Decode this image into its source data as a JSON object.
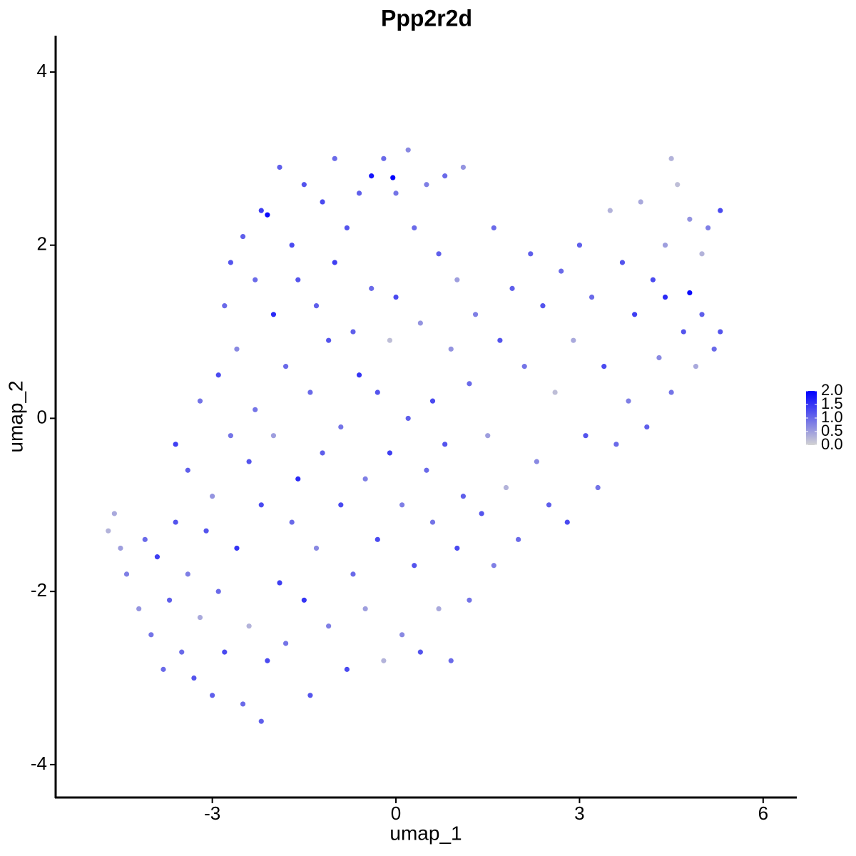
{
  "chart_data": {
    "type": "scatter",
    "title": "Ppp2r2d",
    "x_label": "umap_1",
    "y_label": "umap_2",
    "x": [
      -4.7,
      -4.6,
      -4.5,
      -4.4,
      -4.2,
      -4.1,
      -4.0,
      -3.9,
      -3.8,
      -3.7,
      -3.6,
      -3.6,
      -3.5,
      -3.4,
      -3.4,
      -3.3,
      -3.2,
      -3.2,
      -3.1,
      -3.0,
      -3.0,
      -2.9,
      -2.9,
      -2.8,
      -2.8,
      -2.7,
      -2.7,
      -2.6,
      -2.6,
      -2.5,
      -2.5,
      -2.4,
      -2.4,
      -2.3,
      -2.3,
      -2.2,
      -2.2,
      -2.2,
      -2.1,
      -2.1,
      -2.0,
      -2.0,
      -1.9,
      -1.9,
      -1.8,
      -1.8,
      -1.7,
      -1.7,
      -1.6,
      -1.6,
      -1.5,
      -1.5,
      -1.4,
      -1.4,
      -1.3,
      -1.3,
      -1.2,
      -1.2,
      -1.1,
      -1.1,
      -1.0,
      -1.0,
      -0.9,
      -0.9,
      -0.8,
      -0.8,
      -0.7,
      -0.7,
      -0.6,
      -0.6,
      -0.5,
      -0.5,
      -0.4,
      -0.4,
      -0.3,
      -0.3,
      -0.2,
      -0.2,
      -0.1,
      -0.1,
      0.0,
      0.0,
      0.1,
      0.1,
      0.2,
      0.2,
      0.3,
      0.3,
      0.4,
      0.4,
      0.5,
      0.5,
      0.6,
      0.6,
      0.7,
      0.7,
      0.8,
      0.8,
      0.9,
      0.9,
      1.0,
      1.0,
      1.1,
      1.1,
      1.2,
      1.2,
      1.3,
      1.4,
      1.5,
      1.6,
      1.6,
      1.7,
      1.8,
      1.9,
      2.0,
      2.1,
      2.2,
      2.3,
      2.4,
      2.5,
      2.6,
      2.7,
      2.8,
      2.9,
      3.0,
      3.1,
      3.2,
      3.3,
      3.4,
      3.5,
      3.6,
      3.7,
      3.8,
      3.9,
      4.0,
      4.1,
      4.2,
      4.3,
      4.4,
      4.4,
      4.5,
      4.5,
      4.6,
      4.7,
      4.8,
      4.8,
      4.9,
      5.0,
      5.0,
      5.1,
      5.2,
      5.3,
      5.3,
      -0.05
    ],
    "y": [
      -1.3,
      -1.1,
      -1.5,
      -1.8,
      -2.2,
      -1.4,
      -2.5,
      -1.6,
      -2.9,
      -2.1,
      -1.2,
      -0.3,
      -2.7,
      -1.8,
      -0.6,
      -3.0,
      -2.3,
      0.2,
      -1.3,
      -3.2,
      -0.9,
      0.5,
      -2.0,
      1.3,
      -2.7,
      -0.2,
      1.8,
      -1.5,
      0.8,
      -3.3,
      2.1,
      -2.4,
      -0.5,
      1.6,
      0.1,
      -3.5,
      -1.0,
      2.4,
      2.35,
      -2.8,
      1.2,
      -0.2,
      2.9,
      -1.9,
      0.6,
      -2.6,
      2.0,
      -1.2,
      -0.7,
      1.6,
      2.7,
      -2.1,
      0.3,
      -3.2,
      1.3,
      -1.5,
      2.5,
      -0.4,
      0.9,
      -2.4,
      3.0,
      1.8,
      -1.0,
      -0.1,
      2.2,
      -2.9,
      1.0,
      -1.8,
      0.5,
      2.6,
      -0.7,
      -2.2,
      2.8,
      1.5,
      0.3,
      -1.4,
      3.0,
      -2.8,
      0.9,
      -0.4,
      2.6,
      1.4,
      -1.0,
      -2.5,
      3.1,
      0.0,
      -1.7,
      2.2,
      1.1,
      -2.7,
      -0.6,
      2.7,
      0.2,
      -1.2,
      1.9,
      -2.2,
      -0.3,
      2.8,
      0.8,
      -2.8,
      -1.5,
      1.6,
      2.9,
      -0.9,
      0.4,
      -2.1,
      1.2,
      -1.1,
      -0.2,
      2.2,
      -1.7,
      0.9,
      -0.8,
      1.5,
      -1.4,
      0.6,
      1.9,
      -0.5,
      1.3,
      -1.0,
      0.3,
      1.7,
      -1.2,
      0.9,
      2.0,
      -0.2,
      1.4,
      -0.8,
      0.6,
      2.4,
      -0.3,
      1.8,
      0.2,
      1.2,
      2.5,
      -0.1,
      1.6,
      0.7,
      2.0,
      1.4,
      3.0,
      0.3,
      2.7,
      1.0,
      1.45,
      2.3,
      0.6,
      1.9,
      1.2,
      2.2,
      0.8,
      2.4,
      1.0,
      2.78
    ],
    "values": [
      0.3,
      0.4,
      0.5,
      0.8,
      0.6,
      1.0,
      0.9,
      1.4,
      1.0,
      1.1,
      1.2,
      1.4,
      1.0,
      0.8,
      1.1,
      1.2,
      0.4,
      0.9,
      1.2,
      1.1,
      0.6,
      1.3,
      1.0,
      1.0,
      1.3,
      0.9,
      1.2,
      1.5,
      0.7,
      1.0,
      1.1,
      0.3,
      1.2,
      1.0,
      0.9,
      1.1,
      1.3,
      1.4,
      1.9,
      1.3,
      1.6,
      0.5,
      1.1,
      1.4,
      1.0,
      0.9,
      1.3,
      1.0,
      1.6,
      1.2,
      1.2,
      1.5,
      1.0,
      1.2,
      1.1,
      0.7,
      1.3,
      1.1,
      1.2,
      0.8,
      1.0,
      1.4,
      1.3,
      0.9,
      1.2,
      1.3,
      1.1,
      1.0,
      1.5,
      1.1,
      0.8,
      0.5,
      1.8,
      1.0,
      1.2,
      1.3,
      1.0,
      0.3,
      0.2,
      1.4,
      0.9,
      1.3,
      0.8,
      0.7,
      0.7,
      1.1,
      1.2,
      1.0,
      0.6,
      1.2,
      1.0,
      0.8,
      1.3,
      0.9,
      1.1,
      0.4,
      1.2,
      1.0,
      0.6,
      1.0,
      1.3,
      0.5,
      0.6,
      1.1,
      1.0,
      0.9,
      0.8,
      1.2,
      0.5,
      1.0,
      0.8,
      1.2,
      0.3,
      1.1,
      1.0,
      0.9,
      1.1,
      0.7,
      1.2,
      1.1,
      0.2,
      1.0,
      1.3,
      0.4,
      1.1,
      1.2,
      1.0,
      0.9,
      1.3,
      0.3,
      1.0,
      1.2,
      0.8,
      1.4,
      0.4,
      1.1,
      1.3,
      0.7,
      0.5,
      1.6,
      0.3,
      0.9,
      0.2,
      1.2,
      1.9,
      0.6,
      0.4,
      0.3,
      1.1,
      0.8,
      1.0,
      1.3,
      1.2,
      2.0
    ],
    "color_low": "#d3d3d3",
    "color_high": "#0000ff",
    "xlim": [
      -5.56,
      6.55
    ],
    "xticks": [
      -3,
      0,
      3,
      6
    ],
    "ylim": [
      -4.38,
      4.42
    ],
    "yticks": [
      -4,
      -2,
      0,
      2,
      4
    ],
    "clim": [
      0,
      2
    ],
    "cticks": [
      {
        "value": 0,
        "label": "0.0"
      },
      {
        "value": 0.5,
        "label": "0.5"
      },
      {
        "value": 1,
        "label": "1.0"
      },
      {
        "value": 1.5,
        "label": "1.5"
      },
      {
        "value": 2,
        "label": "2.0"
      }
    ]
  }
}
